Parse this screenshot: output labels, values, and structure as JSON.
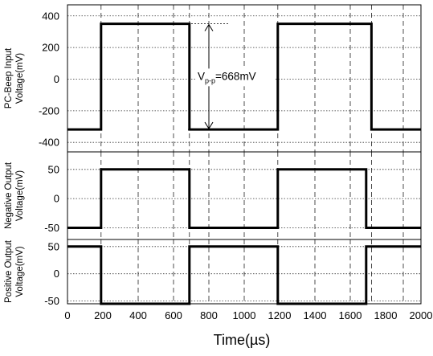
{
  "chart_data": {
    "type": "line",
    "xlabel": "Time(µs)",
    "x_ticks": [
      "0",
      "200",
      "400",
      "600",
      "800",
      "1000",
      "1200",
      "1400",
      "1600",
      "1800",
      "2000"
    ],
    "xlim": [
      0,
      2000
    ],
    "grid": true,
    "panels": [
      {
        "ylabel_lines": [
          "PC-Beep Input",
          "Voltage(mV)"
        ],
        "ylim": [
          -460,
          470
        ],
        "y_ticks": [
          400,
          200,
          0,
          -200,
          -400
        ],
        "y_tick_labels": [
          "400",
          "200",
          "0",
          "-200",
          "-400"
        ],
        "series": [
          {
            "x": [
              0,
              190,
              190,
              690,
              690,
              1190,
              1190,
              1720,
              1720,
              2000
            ],
            "y": [
              -318,
              -318,
              350,
              350,
              -318,
              -318,
              350,
              350,
              -318,
              -318
            ]
          }
        ],
        "annotation": {
          "main": "V",
          "sub": "p-p",
          "rest": "=668mV",
          "x": 800,
          "y_top": 350,
          "y_bottom": -318
        }
      },
      {
        "ylabel_lines": [
          "Negative Output",
          "Voltage(mV)"
        ],
        "ylim": [
          -70,
          80
        ],
        "y_ticks": [
          50,
          0,
          -50
        ],
        "y_tick_labels": [
          "50",
          "0",
          "-50"
        ],
        "series": [
          {
            "x": [
              0,
              190,
              190,
              690,
              690,
              1190,
              1190,
              1690,
              1690,
              2000
            ],
            "y": [
              -50,
              -50,
              50,
              50,
              -50,
              -50,
              50,
              50,
              -50,
              -50
            ]
          }
        ]
      },
      {
        "ylabel_lines": [
          "Positive Output",
          "Voltage(mV)"
        ],
        "ylim": [
          -55,
          63
        ],
        "y_ticks": [
          50,
          0,
          -50
        ],
        "y_tick_labels": [
          "50",
          "0",
          "-50"
        ],
        "series": [
          {
            "x": [
              0,
              190,
              190,
              690,
              690,
              1190,
              1190,
              1690,
              1690,
              2000
            ],
            "y": [
              50,
              50,
              -55,
              -55,
              50,
              50,
              -55,
              -55,
              50,
              50
            ]
          }
        ]
      }
    ]
  }
}
